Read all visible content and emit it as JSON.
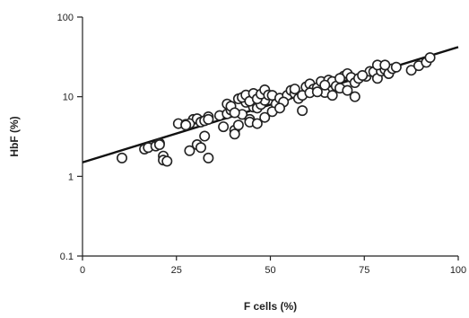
{
  "chart_data": {
    "type": "scatter",
    "title": "",
    "xlabel": "F cells (%)",
    "ylabel": "HbF (%)",
    "xlim": [
      0,
      100
    ],
    "ylim": [
      0.1,
      100
    ],
    "y_scale": "log",
    "grid": false,
    "legend": "none",
    "x_ticks": [
      0,
      25,
      50,
      75,
      100
    ],
    "y_ticks": [
      0.1,
      1,
      10,
      100
    ],
    "x_tick_labels": [
      "0",
      "25",
      "50",
      "75",
      "100"
    ],
    "y_tick_labels": [
      "0.1",
      "1",
      "10",
      "100"
    ],
    "colors": {
      "axis": "#222222",
      "marker_edge": "#222222",
      "marker_fill": "#ffffff",
      "fit_line": "#111111"
    },
    "trend_line": {
      "x": [
        0,
        100
      ],
      "y": [
        1.5,
        42
      ]
    },
    "series": [
      {
        "x": [
          10.5,
          16.5,
          17.5,
          19.5,
          20.5,
          21.5,
          20.5,
          21.5,
          22.5,
          25.5,
          27.5,
          28.5,
          29.5,
          30.5,
          31.5,
          32.5,
          33.5,
          33.5,
          28.5,
          30.5,
          31.5,
          32.5,
          33.5,
          27.5,
          36.5,
          37.5,
          38.5,
          39.5,
          40.5,
          41.5,
          42.5,
          43.5,
          44.5,
          45.5,
          46.5,
          47.5,
          48.5,
          38.5,
          39.5,
          40.5,
          41.5,
          42.5,
          43.5,
          44.5,
          45.5,
          46.5,
          47.5,
          48.5,
          49.5,
          50.5,
          51.5,
          52.5,
          54.5,
          55.5,
          56.5,
          57.5,
          58.5,
          59.5,
          60.5,
          61.5,
          62.5,
          63.5,
          64.5,
          65.5,
          66.5,
          67.5,
          68.5,
          69.5,
          70.5,
          71.5,
          72.5,
          73.5,
          75.5,
          76.5,
          77.5,
          78.5,
          79.5,
          80.5,
          81.5,
          82.5,
          83.5,
          87.5,
          89.5,
          91.5,
          92.5,
          53.5,
          56.5,
          58.5,
          60.5,
          62.5,
          64.5,
          66.5,
          68.5,
          70.5,
          72.5,
          74.5,
          78.5,
          80.5,
          40.5,
          44.5,
          46.5,
          48.5,
          50.5,
          52.5
        ],
        "y": [
          1.7,
          2.2,
          2.3,
          2.4,
          2.6,
          1.8,
          2.5,
          1.6,
          1.55,
          4.6,
          4.5,
          2.1,
          5.2,
          2.5,
          2.3,
          3.2,
          5.6,
          1.7,
          4.6,
          5.3,
          4.8,
          5.0,
          5.2,
          4.4,
          5.8,
          4.2,
          6.1,
          6.8,
          3.8,
          4.4,
          6.0,
          8.5,
          5.2,
          7.4,
          7.2,
          8.0,
          9.0,
          8.1,
          7.6,
          6.3,
          9.4,
          9.8,
          10.5,
          8.8,
          11.0,
          9.4,
          10.8,
          12.2,
          10.5,
          10.4,
          8.1,
          9.6,
          10.4,
          12.0,
          11.0,
          9.5,
          10.4,
          13.3,
          14.5,
          12.5,
          13.0,
          15.5,
          11.3,
          16.2,
          15.5,
          13.6,
          12.8,
          18.1,
          19.5,
          17.5,
          15.0,
          17.0,
          18.0,
          20.8,
          20.5,
          17.0,
          21.0,
          22.0,
          19.5,
          22.5,
          23.5,
          21.5,
          24.5,
          27.0,
          31.0,
          8.6,
          12.5,
          6.7,
          11.2,
          11.5,
          14.0,
          10.4,
          17.0,
          12.0,
          10.0,
          18.5,
          25.0,
          25.0,
          3.4,
          4.8,
          4.6,
          5.5,
          6.5,
          7.2
        ]
      }
    ]
  }
}
